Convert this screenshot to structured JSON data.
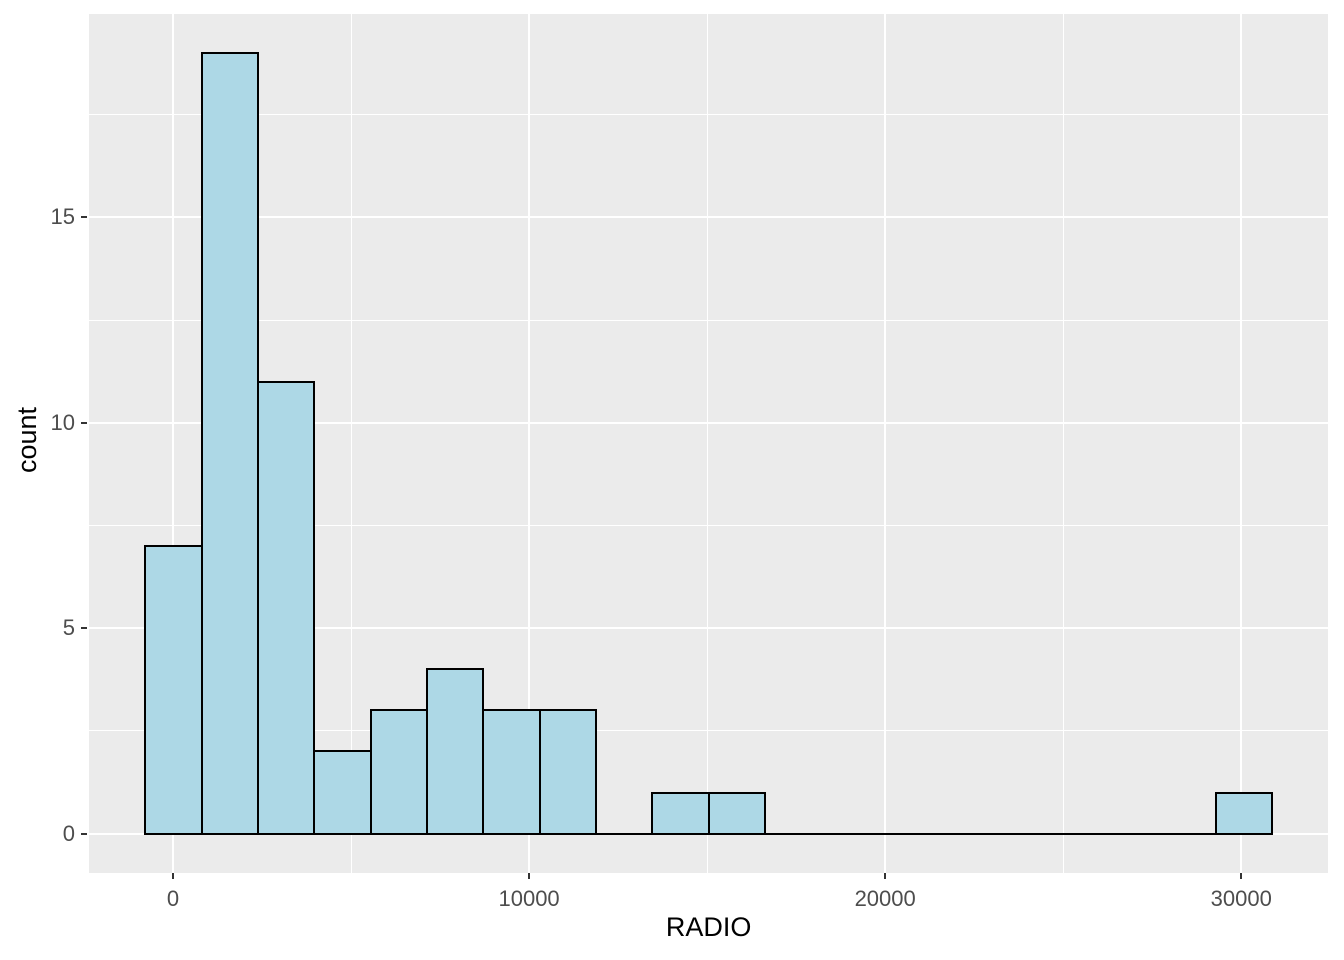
{
  "chart_data": {
    "type": "bar",
    "subtype": "histogram",
    "title": "",
    "xlabel": "RADIO",
    "ylabel": "count",
    "legend": null,
    "grid": "on",
    "xlim": [
      -2359,
      32445
    ],
    "ylim": [
      -0.95,
      19.95
    ],
    "x_major_ticks": [
      {
        "value": 0,
        "label": "0"
      },
      {
        "value": 10000,
        "label": "10000"
      },
      {
        "value": 20000,
        "label": "20000"
      },
      {
        "value": 30000,
        "label": "30000"
      }
    ],
    "x_minor_gridlines": [
      5000,
      15000,
      25000
    ],
    "y_major_ticks": [
      {
        "value": 0,
        "label": "0"
      },
      {
        "value": 5,
        "label": "5"
      },
      {
        "value": 10,
        "label": "10"
      },
      {
        "value": 15,
        "label": "15"
      }
    ],
    "y_minor_gridlines": [
      2.5,
      7.5,
      12.5,
      17.5
    ],
    "bin_width": 1582,
    "bins": [
      {
        "start": -777,
        "end": 805,
        "count": 7
      },
      {
        "start": 805,
        "end": 2387,
        "count": 19
      },
      {
        "start": 2387,
        "end": 3969,
        "count": 11
      },
      {
        "start": 3969,
        "end": 5551,
        "count": 2
      },
      {
        "start": 5551,
        "end": 7133,
        "count": 3
      },
      {
        "start": 7133,
        "end": 8715,
        "count": 4
      },
      {
        "start": 8715,
        "end": 10297,
        "count": 3
      },
      {
        "start": 10297,
        "end": 11879,
        "count": 3
      },
      {
        "start": 11879,
        "end": 13461,
        "count": 0
      },
      {
        "start": 13461,
        "end": 15043,
        "count": 1
      },
      {
        "start": 15043,
        "end": 16625,
        "count": 1
      },
      {
        "start": 16625,
        "end": 18207,
        "count": 0
      },
      {
        "start": 18207,
        "end": 19789,
        "count": 0
      },
      {
        "start": 19789,
        "end": 21371,
        "count": 0
      },
      {
        "start": 21371,
        "end": 22953,
        "count": 0
      },
      {
        "start": 22953,
        "end": 24535,
        "count": 0
      },
      {
        "start": 24535,
        "end": 26117,
        "count": 0
      },
      {
        "start": 26117,
        "end": 27699,
        "count": 0
      },
      {
        "start": 27699,
        "end": 29281,
        "count": 0
      },
      {
        "start": 29281,
        "end": 30863,
        "count": 1
      }
    ],
    "style": {
      "panel_background": "#EBEBEB",
      "figure_background": "#FFFFFF",
      "gridline_color": "#FFFFFF",
      "bar_fill": "#ADD8E6",
      "bar_stroke": "#000000",
      "tick_mark_color": "#333333",
      "tick_label_color": "#4D4D4D",
      "axis_title_color": "#000000"
    }
  }
}
